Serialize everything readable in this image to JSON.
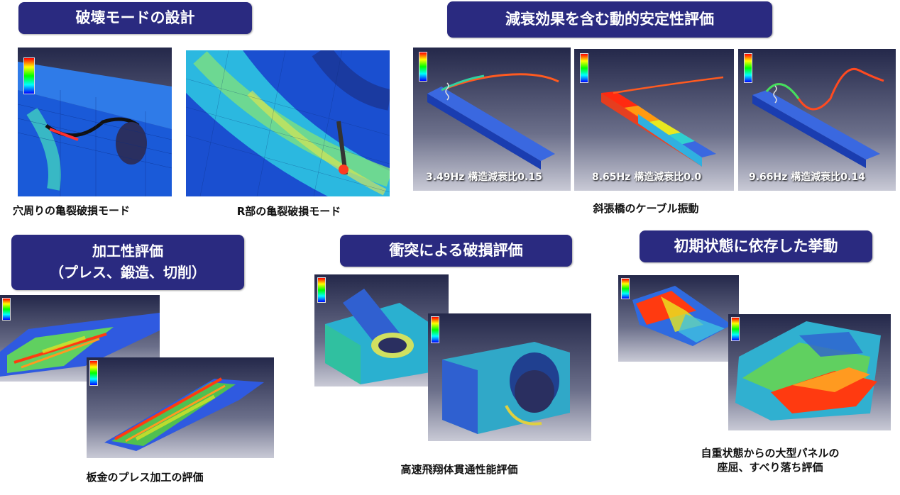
{
  "sections": {
    "failure_mode": {
      "title": "破壊モードの設計",
      "captions": [
        "穴周りの亀裂破損モード",
        "R部の亀裂破損モード"
      ]
    },
    "dynamic_stability": {
      "title": "減衰効果を含む動的安定性評価",
      "frequencies": [
        "3.49Hz 構造減衰比0.15",
        "8.65Hz 構造減衰比0.0",
        "9.66Hz 構造減衰比0.14"
      ],
      "caption": "斜張橋のケーブル振動"
    },
    "formability": {
      "title_line1": "加工性評価",
      "title_line2": "（プレス、鍛造、切削）",
      "caption": "板金のプレス加工の評価"
    },
    "impact": {
      "title": "衝突による破損評価",
      "caption": "高速飛翔体貫通性能評価"
    },
    "initial_state": {
      "title": "初期状態に依存した挙動",
      "caption_line1": "自重状態からの大型パネルの",
      "caption_line2": "座屈、すべり落ち評価"
    }
  }
}
